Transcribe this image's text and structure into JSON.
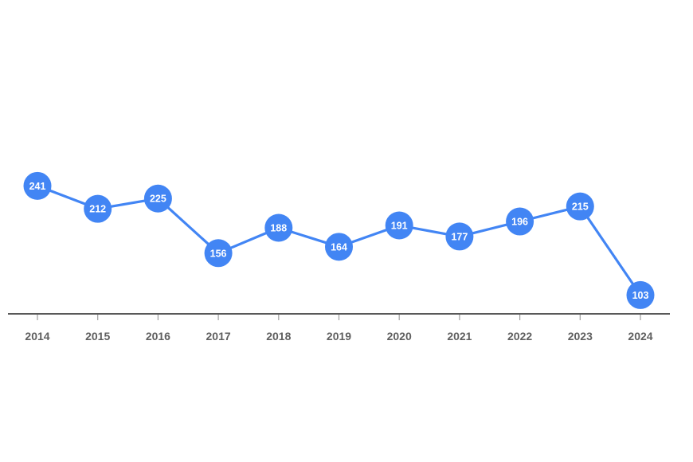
{
  "chart_data": {
    "type": "line",
    "title": "",
    "xlabel": "",
    "ylabel": "",
    "x": [
      "2014",
      "2015",
      "2016",
      "2017",
      "2018",
      "2019",
      "2020",
      "2021",
      "2022",
      "2023",
      "2024"
    ],
    "series": [
      {
        "values": [
          241,
          212,
          225,
          156,
          188,
          164,
          191,
          177,
          196,
          215,
          103
        ],
        "color": "#4285f4"
      }
    ],
    "ylim": [
      40,
      340
    ],
    "grid": false,
    "data_labels": true,
    "axis_color": "#222222",
    "tick_color": "#9e9e9e",
    "label_color": "#5f5f5f"
  }
}
